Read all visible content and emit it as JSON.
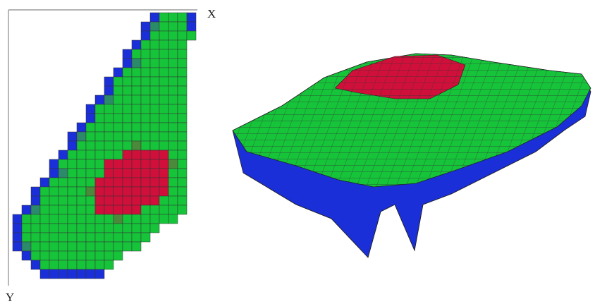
{
  "axes": {
    "x_label": "X",
    "y_label": "Y"
  }
}
